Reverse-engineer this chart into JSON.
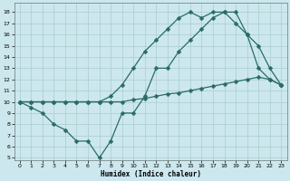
{
  "line1_x": [
    0,
    1,
    2,
    3,
    4,
    5,
    6,
    7,
    8,
    9,
    10,
    11,
    12,
    13,
    14,
    15,
    16,
    17,
    18,
    19,
    20,
    21,
    22,
    23
  ],
  "line1_y": [
    10,
    9.5,
    9,
    8,
    7.5,
    6.5,
    6.5,
    5,
    6.5,
    9,
    9,
    10.5,
    13,
    13,
    14.5,
    15.5,
    16.5,
    17.5,
    18,
    18,
    16,
    15,
    13,
    11.5
  ],
  "line2_x": [
    0,
    1,
    2,
    3,
    4,
    5,
    6,
    7,
    8,
    9,
    10,
    11,
    12,
    13,
    14,
    15,
    16,
    17,
    18,
    19,
    20,
    21,
    22,
    23
  ],
  "line2_y": [
    10,
    10,
    10,
    10,
    10,
    10,
    10,
    10,
    10,
    10,
    10.2,
    10.3,
    10.5,
    10.7,
    10.8,
    11.0,
    11.2,
    11.4,
    11.6,
    11.8,
    12.0,
    12.2,
    12.0,
    11.5
  ],
  "line3_x": [
    0,
    1,
    2,
    3,
    4,
    5,
    6,
    7,
    8,
    9,
    10,
    11,
    12,
    13,
    14,
    15,
    16,
    17,
    18,
    19,
    20,
    21,
    22,
    23
  ],
  "line3_y": [
    10,
    10,
    10,
    10,
    10,
    10,
    10,
    10,
    10.5,
    11.5,
    13,
    14.5,
    15.5,
    16.5,
    17.5,
    18,
    17.5,
    18,
    18,
    17,
    16,
    13,
    12,
    11.5
  ],
  "bg_color": "#cce8ee",
  "grid_color": "#aacccc",
  "line_color": "#2a6b68",
  "xlabel": "Humidex (Indice chaleur)",
  "xlim": [
    -0.5,
    23.5
  ],
  "ylim": [
    4.8,
    18.8
  ],
  "yticks": [
    5,
    6,
    7,
    8,
    9,
    10,
    11,
    12,
    13,
    14,
    15,
    16,
    17,
    18
  ],
  "xticks": [
    0,
    1,
    2,
    3,
    4,
    5,
    6,
    7,
    8,
    9,
    10,
    11,
    12,
    13,
    14,
    15,
    16,
    17,
    18,
    19,
    20,
    21,
    22,
    23
  ]
}
